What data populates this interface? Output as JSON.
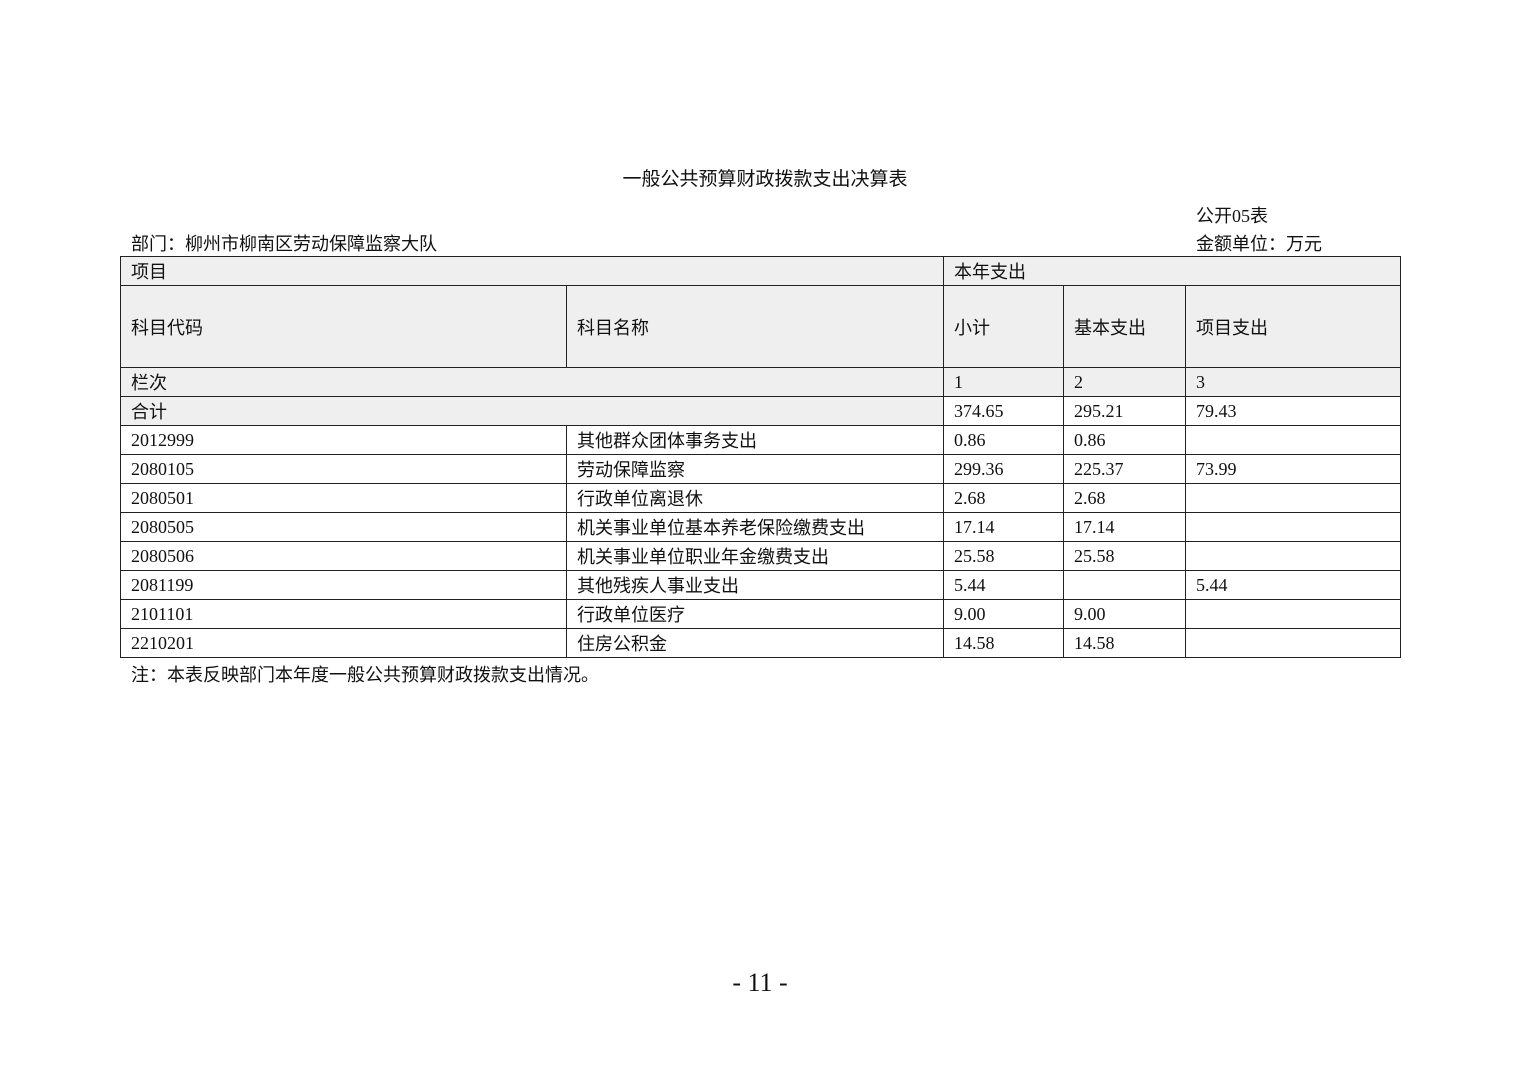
{
  "title": "一般公共预算财政拨款支出决算表",
  "table_no": "公开05表",
  "department": "部门：柳州市柳南区劳动保障监察大队",
  "unit": "金额单位：万元",
  "headers": {
    "item": "项目",
    "current_year": "本年支出",
    "code": "科目代码",
    "name": "科目名称",
    "subtotal": "小计",
    "basic": "基本支出",
    "project": "项目支出",
    "column_no": "栏次",
    "col1": "1",
    "col2": "2",
    "col3": "3"
  },
  "total": {
    "label": "合计",
    "subtotal": "374.65",
    "basic": "295.21",
    "project": "79.43"
  },
  "rows": [
    {
      "code": "2012999",
      "name": "其他群众团体事务支出",
      "subtotal": "0.86",
      "basic": "0.86",
      "project": ""
    },
    {
      "code": "2080105",
      "name": "劳动保障监察",
      "subtotal": "299.36",
      "basic": "225.37",
      "project": "73.99"
    },
    {
      "code": "2080501",
      "name": "行政单位离退休",
      "subtotal": "2.68",
      "basic": "2.68",
      "project": ""
    },
    {
      "code": "2080505",
      "name": "机关事业单位基本养老保险缴费支出",
      "subtotal": "17.14",
      "basic": "17.14",
      "project": ""
    },
    {
      "code": "2080506",
      "name": "机关事业单位职业年金缴费支出",
      "subtotal": "25.58",
      "basic": "25.58",
      "project": ""
    },
    {
      "code": "2081199",
      "name": "其他残疾人事业支出",
      "subtotal": "5.44",
      "basic": "",
      "project": "5.44"
    },
    {
      "code": "2101101",
      "name": "行政单位医疗",
      "subtotal": "9.00",
      "basic": "9.00",
      "project": ""
    },
    {
      "code": "2210201",
      "name": "住房公积金",
      "subtotal": "14.58",
      "basic": "14.58",
      "project": ""
    }
  ],
  "note": "注：本表反映部门本年度一般公共预算财政拨款支出情况。",
  "page_number": "- 11 -"
}
